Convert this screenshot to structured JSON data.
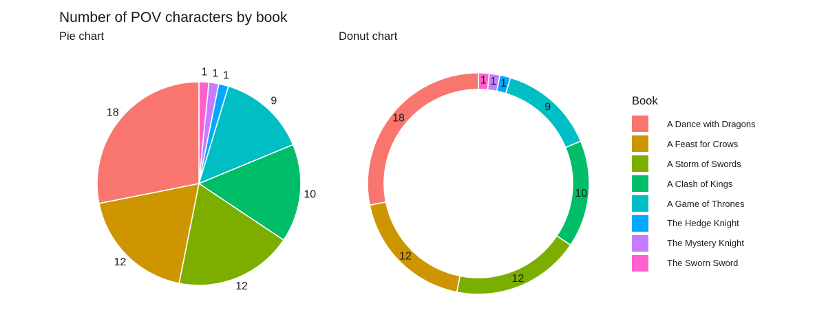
{
  "chart": {
    "title": "Number of POV characters by book"
  },
  "chart_data": [
    {
      "type": "pie",
      "subtitle": "Pie chart",
      "categories": [
        "A Dance with Dragons",
        "A Feast for Crows",
        "A Storm of Swords",
        "A Clash of Kings",
        "A Game of Thrones",
        "The Hedge Knight",
        "The Mystery Knight",
        "The Sworn Sword"
      ],
      "values": [
        18,
        12,
        12,
        10,
        9,
        1,
        1,
        1
      ]
    },
    {
      "type": "donut",
      "subtitle": "Donut chart",
      "categories": [
        "A Dance with Dragons",
        "A Feast for Crows",
        "A Storm of Swords",
        "A Clash of Kings",
        "A Game of Thrones",
        "The Hedge Knight",
        "The Mystery Knight",
        "The Sworn Sword"
      ],
      "values": [
        18,
        12,
        12,
        10,
        9,
        1,
        1,
        1
      ]
    }
  ],
  "legend": {
    "title": "Book",
    "items": [
      {
        "label": "A Dance with Dragons",
        "color": "#F8766D"
      },
      {
        "label": "A Feast for Crows",
        "color": "#CD9600"
      },
      {
        "label": "A Storm of Swords",
        "color": "#7CAE00"
      },
      {
        "label": "A Clash of Kings",
        "color": "#00BE67"
      },
      {
        "label": "A Game of Thrones",
        "color": "#00BFC4"
      },
      {
        "label": "The Hedge Knight",
        "color": "#00A9FF"
      },
      {
        "label": "The Mystery Knight",
        "color": "#C77CFF"
      },
      {
        "label": "The Sworn Sword",
        "color": "#FF61CC"
      }
    ]
  }
}
